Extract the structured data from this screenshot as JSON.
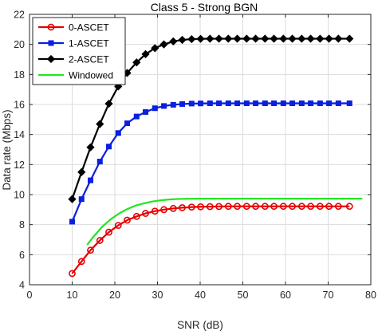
{
  "chart_data": {
    "type": "line",
    "title": "Class 5 - Strong BGN",
    "xlabel": "SNR (dB)",
    "ylabel": "Data rate (Mbps)",
    "xlim": [
      0,
      80
    ],
    "ylim": [
      4,
      22
    ],
    "xticks": [
      0,
      10,
      20,
      30,
      40,
      50,
      60,
      70,
      80
    ],
    "yticks": [
      4,
      6,
      8,
      10,
      12,
      14,
      16,
      18,
      20,
      22
    ],
    "grid": true,
    "legend_position": "top-left",
    "series": [
      {
        "name": "0-ASCET",
        "color": "#e60000",
        "marker": "circle",
        "x": [
          10,
          12.2,
          14.3,
          16.5,
          18.6,
          20.8,
          22.9,
          25.1,
          27.2,
          29.4,
          31.5,
          33.7,
          35.8,
          38,
          40.1,
          42.3,
          44.4,
          46.6,
          48.7,
          50.9,
          53,
          55.2,
          57.3,
          59.5,
          61.6,
          63.8,
          65.9,
          68.1,
          70.2,
          72.4,
          75
        ],
        "y": [
          4.75,
          5.55,
          6.3,
          6.95,
          7.5,
          7.95,
          8.3,
          8.55,
          8.75,
          8.9,
          9.0,
          9.08,
          9.13,
          9.17,
          9.19,
          9.2,
          9.21,
          9.22,
          9.22,
          9.22,
          9.22,
          9.22,
          9.22,
          9.22,
          9.22,
          9.22,
          9.22,
          9.22,
          9.22,
          9.22,
          9.22
        ]
      },
      {
        "name": "1-ASCET",
        "color": "#0a1fe0",
        "marker": "square",
        "x": [
          10,
          12.2,
          14.3,
          16.5,
          18.6,
          20.8,
          22.9,
          25.1,
          27.2,
          29.4,
          31.5,
          33.7,
          35.8,
          38,
          40.1,
          42.3,
          44.4,
          46.6,
          48.7,
          50.9,
          53,
          55.2,
          57.3,
          59.5,
          61.6,
          63.8,
          65.9,
          68.1,
          70.2,
          72.4,
          75
        ],
        "y": [
          8.2,
          9.7,
          10.95,
          12.2,
          13.2,
          14.1,
          14.75,
          15.2,
          15.5,
          15.75,
          15.9,
          15.98,
          16.03,
          16.06,
          16.07,
          16.08,
          16.08,
          16.08,
          16.08,
          16.08,
          16.08,
          16.08,
          16.08,
          16.08,
          16.08,
          16.08,
          16.08,
          16.08,
          16.08,
          16.08,
          16.08
        ]
      },
      {
        "name": "2-ASCET",
        "color": "#000000",
        "marker": "diamond",
        "x": [
          10,
          12.2,
          14.3,
          16.5,
          18.6,
          20.8,
          22.9,
          25.1,
          27.2,
          29.4,
          31.5,
          33.7,
          35.8,
          38,
          40.1,
          42.3,
          44.4,
          46.6,
          48.7,
          50.9,
          53,
          55.2,
          57.3,
          59.5,
          61.6,
          63.8,
          65.9,
          68.1,
          70.2,
          72.4,
          75
        ],
        "y": [
          9.7,
          11.5,
          13.15,
          14.7,
          16.05,
          17.2,
          18.1,
          18.8,
          19.35,
          19.75,
          20.0,
          20.2,
          20.3,
          20.35,
          20.37,
          20.38,
          20.38,
          20.38,
          20.38,
          20.38,
          20.38,
          20.38,
          20.38,
          20.38,
          20.38,
          20.38,
          20.38,
          20.38,
          20.38,
          20.38,
          20.38
        ]
      },
      {
        "name": "Windowed",
        "color": "#22e61e",
        "marker": "none",
        "x": [
          13.5,
          15,
          17,
          19,
          21,
          23,
          25,
          27,
          29,
          31,
          33,
          35,
          37,
          40,
          45,
          50,
          55,
          60,
          65,
          70,
          75,
          78
        ],
        "y": [
          6.65,
          7.2,
          7.85,
          8.35,
          8.75,
          9.05,
          9.28,
          9.43,
          9.55,
          9.63,
          9.68,
          9.71,
          9.72,
          9.73,
          9.73,
          9.73,
          9.73,
          9.73,
          9.73,
          9.73,
          9.73,
          9.73
        ]
      }
    ]
  }
}
